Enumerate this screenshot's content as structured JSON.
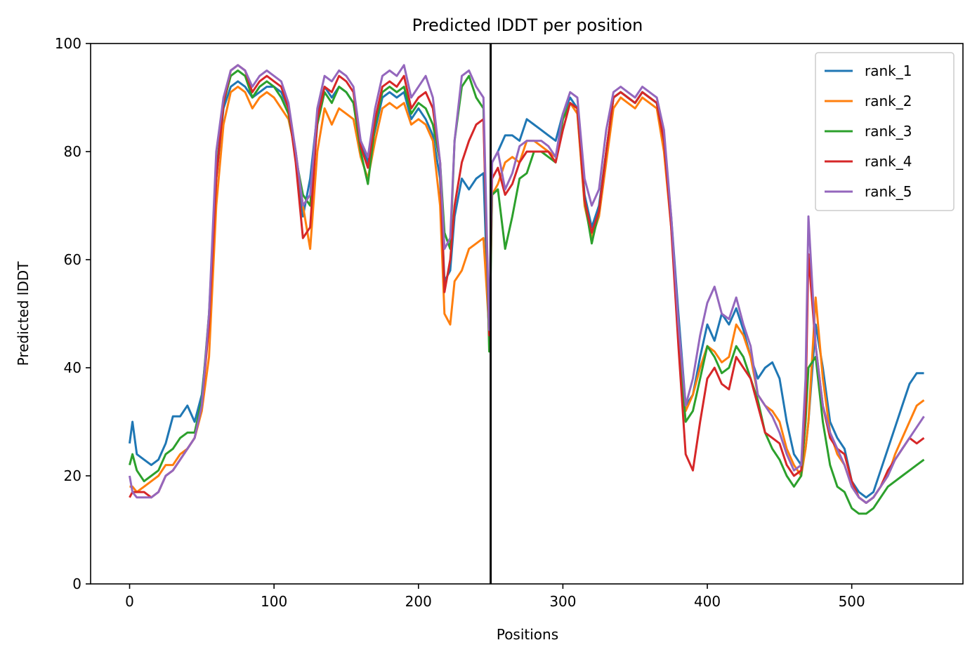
{
  "chart_data": {
    "type": "line",
    "title": "Predicted lDDT per position",
    "xlabel": "Positions",
    "ylabel": "Predicted lDDT",
    "xlim": [
      -27,
      577
    ],
    "ylim": [
      0,
      100
    ],
    "xticks": [
      0,
      100,
      200,
      300,
      400,
      500
    ],
    "yticks": [
      0,
      20,
      40,
      60,
      80,
      100
    ],
    "grid": false,
    "legend_position": "upper-right",
    "vline_x": 250,
    "series": [
      {
        "name": "rank_1",
        "color": "#1f77b4",
        "x": [
          0,
          2,
          5,
          10,
          15,
          20,
          25,
          30,
          35,
          40,
          45,
          50,
          55,
          60,
          65,
          70,
          75,
          80,
          85,
          90,
          95,
          100,
          105,
          110,
          115,
          120,
          125,
          130,
          135,
          140,
          145,
          150,
          155,
          160,
          165,
          170,
          175,
          180,
          185,
          190,
          195,
          200,
          205,
          210,
          215,
          218,
          222,
          225,
          230,
          235,
          240,
          245,
          249,
          251,
          255,
          260,
          265,
          270,
          275,
          280,
          285,
          290,
          295,
          300,
          305,
          310,
          315,
          320,
          325,
          330,
          335,
          340,
          345,
          350,
          355,
          360,
          365,
          370,
          375,
          380,
          385,
          390,
          395,
          400,
          405,
          410,
          415,
          420,
          425,
          430,
          435,
          440,
          445,
          450,
          455,
          460,
          465,
          468,
          470,
          475,
          480,
          485,
          490,
          495,
          500,
          505,
          510,
          515,
          520,
          525,
          530,
          535,
          540,
          545,
          550
        ],
        "y": [
          26,
          30,
          24,
          23,
          22,
          23,
          26,
          31,
          31,
          33,
          30,
          35,
          48,
          75,
          88,
          92,
          93,
          92,
          90,
          91,
          92,
          92,
          91,
          88,
          80,
          68,
          75,
          87,
          92,
          90,
          92,
          91,
          89,
          82,
          78,
          84,
          90,
          91,
          90,
          91,
          86,
          88,
          86,
          83,
          75,
          56,
          58,
          68,
          75,
          73,
          75,
          76,
          45,
          78,
          80,
          83,
          83,
          82,
          86,
          85,
          84,
          83,
          82,
          87,
          90,
          88,
          72,
          66,
          70,
          80,
          90,
          91,
          90,
          89,
          91,
          90,
          89,
          82,
          68,
          50,
          33,
          35,
          42,
          48,
          45,
          50,
          48,
          51,
          47,
          42,
          38,
          40,
          41,
          38,
          30,
          24,
          22,
          25,
          30,
          48,
          40,
          30,
          27,
          25,
          19,
          17,
          16,
          17,
          21,
          25,
          29,
          33,
          37,
          39,
          39
        ],
        "label_series": true
      },
      {
        "name": "rank_2",
        "color": "#ff7f0e",
        "x": [
          0,
          2,
          5,
          10,
          15,
          20,
          25,
          30,
          35,
          40,
          45,
          50,
          55,
          60,
          65,
          70,
          75,
          80,
          85,
          90,
          95,
          100,
          105,
          110,
          115,
          120,
          125,
          130,
          135,
          140,
          145,
          150,
          155,
          160,
          165,
          170,
          175,
          180,
          185,
          190,
          195,
          200,
          205,
          210,
          215,
          218,
          222,
          225,
          230,
          235,
          240,
          245,
          249,
          251,
          255,
          260,
          265,
          270,
          275,
          280,
          285,
          290,
          295,
          300,
          305,
          310,
          315,
          320,
          325,
          330,
          335,
          340,
          345,
          350,
          355,
          360,
          365,
          370,
          375,
          380,
          385,
          390,
          395,
          400,
          405,
          410,
          415,
          420,
          425,
          430,
          435,
          440,
          445,
          450,
          455,
          460,
          465,
          468,
          470,
          475,
          480,
          485,
          490,
          495,
          500,
          505,
          510,
          515,
          520,
          525,
          530,
          535,
          540,
          545,
          550
        ],
        "y": [
          18,
          18,
          17,
          18,
          19,
          20,
          22,
          22,
          24,
          25,
          27,
          32,
          42,
          70,
          85,
          91,
          92,
          91,
          88,
          90,
          91,
          90,
          88,
          86,
          80,
          70,
          62,
          80,
          88,
          85,
          88,
          87,
          86,
          79,
          75,
          82,
          88,
          89,
          88,
          89,
          85,
          86,
          85,
          82,
          70,
          50,
          48,
          56,
          58,
          62,
          63,
          64,
          47,
          72,
          74,
          78,
          79,
          78,
          82,
          82,
          81,
          80,
          79,
          86,
          89,
          87,
          70,
          64,
          68,
          78,
          88,
          90,
          89,
          88,
          90,
          89,
          88,
          80,
          66,
          48,
          32,
          35,
          40,
          44,
          43,
          41,
          42,
          48,
          46,
          42,
          35,
          33,
          32,
          30,
          25,
          22,
          20,
          25,
          30,
          53,
          38,
          28,
          24,
          22,
          18,
          16,
          15,
          16,
          18,
          20,
          24,
          27,
          30,
          33,
          34
        ],
        "label_series": true
      },
      {
        "name": "rank_3",
        "color": "#2ca02c",
        "x": [
          0,
          2,
          5,
          10,
          15,
          20,
          25,
          30,
          35,
          40,
          45,
          50,
          55,
          60,
          65,
          70,
          75,
          80,
          85,
          90,
          95,
          100,
          105,
          110,
          115,
          120,
          125,
          130,
          135,
          140,
          145,
          150,
          155,
          160,
          165,
          170,
          175,
          180,
          185,
          190,
          195,
          200,
          205,
          210,
          215,
          218,
          222,
          225,
          230,
          235,
          240,
          245,
          249,
          251,
          255,
          260,
          265,
          270,
          275,
          280,
          285,
          290,
          295,
          300,
          305,
          310,
          315,
          320,
          325,
          330,
          335,
          340,
          345,
          350,
          355,
          360,
          365,
          370,
          375,
          380,
          385,
          390,
          395,
          400,
          405,
          410,
          415,
          420,
          425,
          430,
          435,
          440,
          445,
          450,
          455,
          460,
          465,
          468,
          470,
          475,
          480,
          485,
          490,
          495,
          500,
          505,
          510,
          515,
          520,
          525,
          530,
          535,
          540,
          545,
          550
        ],
        "y": [
          22,
          24,
          21,
          19,
          20,
          21,
          24,
          25,
          27,
          28,
          28,
          34,
          50,
          76,
          89,
          94,
          95,
          94,
          90,
          92,
          93,
          92,
          90,
          87,
          79,
          72,
          70,
          85,
          91,
          89,
          92,
          91,
          89,
          80,
          74,
          85,
          91,
          92,
          91,
          92,
          87,
          89,
          88,
          85,
          78,
          65,
          62,
          82,
          92,
          94,
          90,
          88,
          43,
          72,
          73,
          62,
          68,
          75,
          76,
          80,
          80,
          79,
          78,
          86,
          89,
          88,
          71,
          63,
          69,
          80,
          90,
          91,
          90,
          89,
          91,
          90,
          89,
          82,
          67,
          46,
          30,
          32,
          38,
          44,
          42,
          39,
          40,
          44,
          42,
          38,
          34,
          28,
          25,
          23,
          20,
          18,
          20,
          30,
          40,
          42,
          30,
          22,
          18,
          17,
          14,
          13,
          13,
          14,
          16,
          18,
          19,
          20,
          21,
          22,
          23
        ],
        "label_series": true
      },
      {
        "name": "rank_4",
        "color": "#d62728",
        "x": [
          0,
          2,
          5,
          10,
          15,
          20,
          25,
          30,
          35,
          40,
          45,
          50,
          55,
          60,
          65,
          70,
          75,
          80,
          85,
          90,
          95,
          100,
          105,
          110,
          115,
          120,
          125,
          130,
          135,
          140,
          145,
          150,
          155,
          160,
          165,
          170,
          175,
          180,
          185,
          190,
          195,
          200,
          205,
          210,
          215,
          218,
          222,
          225,
          230,
          235,
          240,
          245,
          249,
          251,
          255,
          260,
          265,
          270,
          275,
          280,
          285,
          290,
          295,
          300,
          305,
          310,
          315,
          320,
          325,
          330,
          335,
          340,
          345,
          350,
          355,
          360,
          365,
          370,
          375,
          380,
          385,
          390,
          395,
          400,
          405,
          410,
          415,
          420,
          425,
          430,
          435,
          440,
          445,
          450,
          455,
          460,
          465,
          468,
          470,
          475,
          480,
          485,
          490,
          495,
          500,
          505,
          510,
          515,
          520,
          525,
          530,
          535,
          540,
          545,
          550
        ],
        "y": [
          16,
          17,
          17,
          17,
          16,
          17,
          20,
          21,
          23,
          25,
          27,
          33,
          48,
          75,
          89,
          95,
          96,
          95,
          91,
          93,
          94,
          93,
          92,
          88,
          78,
          64,
          66,
          86,
          92,
          91,
          94,
          93,
          91,
          81,
          77,
          86,
          92,
          93,
          92,
          94,
          88,
          90,
          91,
          88,
          78,
          54,
          60,
          70,
          78,
          82,
          85,
          86,
          46,
          75,
          77,
          72,
          74,
          78,
          80,
          80,
          80,
          80,
          78,
          84,
          89,
          88,
          71,
          65,
          69,
          80,
          90,
          91,
          90,
          89,
          91,
          90,
          89,
          82,
          66,
          44,
          24,
          21,
          30,
          38,
          40,
          37,
          36,
          42,
          40,
          38,
          33,
          28,
          27,
          26,
          22,
          20,
          21,
          33,
          61,
          44,
          33,
          27,
          25,
          24,
          19,
          16,
          15,
          16,
          18,
          21,
          23,
          25,
          27,
          26,
          27
        ],
        "label_series": true
      },
      {
        "name": "rank_5",
        "color": "#9467bd",
        "x": [
          0,
          2,
          5,
          10,
          15,
          20,
          25,
          30,
          35,
          40,
          45,
          50,
          55,
          60,
          65,
          70,
          75,
          80,
          85,
          90,
          95,
          100,
          105,
          110,
          115,
          120,
          125,
          130,
          135,
          140,
          145,
          150,
          155,
          160,
          165,
          170,
          175,
          180,
          185,
          190,
          195,
          200,
          205,
          210,
          215,
          218,
          222,
          225,
          230,
          235,
          240,
          245,
          249,
          251,
          255,
          260,
          265,
          270,
          275,
          280,
          285,
          290,
          295,
          300,
          305,
          310,
          315,
          320,
          325,
          330,
          335,
          340,
          345,
          350,
          355,
          360,
          365,
          370,
          375,
          380,
          385,
          390,
          395,
          400,
          405,
          410,
          415,
          420,
          425,
          430,
          435,
          440,
          445,
          450,
          455,
          460,
          465,
          468,
          470,
          475,
          480,
          485,
          490,
          495,
          500,
          505,
          510,
          515,
          520,
          525,
          530,
          535,
          540,
          545,
          550
        ],
        "y": [
          20,
          17,
          16,
          16,
          16,
          17,
          20,
          21,
          23,
          25,
          27,
          33,
          50,
          80,
          90,
          95,
          96,
          95,
          92,
          94,
          95,
          94,
          93,
          89,
          80,
          70,
          72,
          88,
          94,
          93,
          95,
          94,
          92,
          82,
          79,
          88,
          94,
          95,
          94,
          96,
          90,
          92,
          94,
          90,
          78,
          62,
          64,
          82,
          94,
          95,
          92,
          90,
          47,
          78,
          80,
          73,
          76,
          81,
          82,
          82,
          82,
          81,
          79,
          87,
          91,
          90,
          75,
          70,
          73,
          84,
          91,
          92,
          91,
          90,
          92,
          91,
          90,
          84,
          68,
          48,
          33,
          38,
          46,
          52,
          55,
          50,
          49,
          53,
          48,
          44,
          35,
          33,
          31,
          28,
          24,
          21,
          22,
          38,
          68,
          44,
          33,
          28,
          25,
          22,
          18,
          16,
          15,
          16,
          18,
          20,
          23,
          25,
          27,
          29,
          31
        ],
        "label_series": true
      }
    ]
  }
}
